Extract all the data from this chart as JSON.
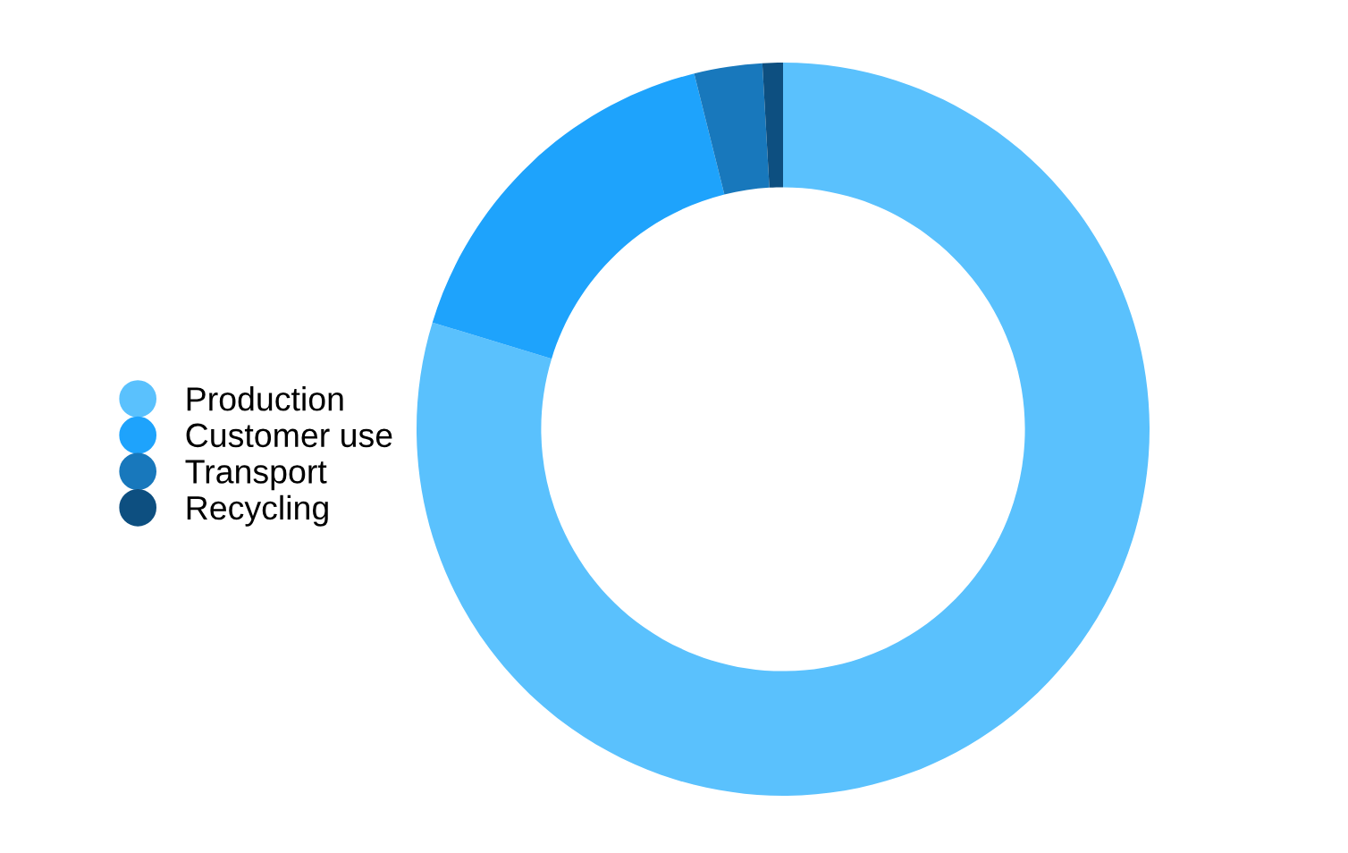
{
  "chart_data": {
    "type": "donut",
    "categories": [
      "Production",
      "Customer use",
      "Transport",
      "Recycling"
    ],
    "values": [
      79.7,
      16.4,
      3.0,
      0.9
    ],
    "colors": [
      "#5ac1fd",
      "#1ea3fc",
      "#1878bc",
      "#0d4f80"
    ],
    "legend": "left"
  }
}
